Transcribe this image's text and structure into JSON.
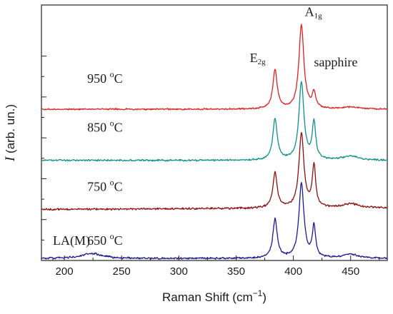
{
  "chart_data": {
    "type": "line",
    "title": "",
    "xlabel": {
      "prefix": "Raman Shift (cm",
      "sup": "−1",
      "suffix": ")"
    },
    "ylabel": {
      "symbol": "I",
      "text": " (arb. un.)"
    },
    "xlim": [
      180,
      482
    ],
    "ylim": [
      0,
      6.25
    ],
    "xticks": [
      200,
      250,
      300,
      350,
      400,
      450
    ],
    "yticks_unlabeled": [
      1,
      2,
      3,
      4,
      5
    ],
    "grid": false,
    "peaks": [
      {
        "center": 384,
        "width": 2.3
      },
      {
        "center": 407,
        "width": 2.6
      },
      {
        "center": 418,
        "width": 1.8
      },
      {
        "center": 450,
        "width": 8
      },
      {
        "center": 224,
        "width": 10
      }
    ],
    "series": [
      {
        "name": "650 °C",
        "color": "#1a1a96",
        "baseline": 0.05,
        "slope": 0.0,
        "amps": [
          0.95,
          1.82,
          0.75,
          0.1,
          0.12
        ],
        "noise": 0.028
      },
      {
        "name": "750 °C",
        "color": "#8c1010",
        "baseline": 1.25,
        "slope": 0.00012,
        "amps": [
          0.85,
          1.82,
          1.0,
          0.1,
          0.0
        ],
        "noise": 0.028
      },
      {
        "name": "850 °C",
        "color": "#10908c",
        "baseline": 2.45,
        "slope": 0.0,
        "amps": [
          1.0,
          1.9,
          0.9,
          0.1,
          0.0
        ],
        "noise": 0.025
      },
      {
        "name": "950 °C",
        "color": "#e02020",
        "baseline": 3.7,
        "slope": 0.0,
        "amps": [
          0.95,
          2.05,
          0.38,
          0.05,
          0.0
        ],
        "noise": 0.022
      }
    ],
    "labels": [
      {
        "id": "temp-950",
        "text": "950 ",
        "sup": "o",
        "tail": "C",
        "x": 220,
        "y": 4.35
      },
      {
        "id": "temp-850",
        "text": "850 ",
        "sup": "o",
        "tail": "C",
        "x": 220,
        "y": 3.15
      },
      {
        "id": "temp-750",
        "text": "750 ",
        "sup": "o",
        "tail": "C",
        "x": 220,
        "y": 1.7
      },
      {
        "id": "temp-650",
        "text": "650 ",
        "sup": "o",
        "tail": "C",
        "x": 220,
        "y": 0.38
      },
      {
        "id": "peak-e2g",
        "text": "E",
        "sub": "2g",
        "x": 362,
        "y": 4.85
      },
      {
        "id": "peak-a1g",
        "text": "A",
        "sub": "1g",
        "x": 410,
        "y": 5.98
      },
      {
        "id": "peak-sapphire",
        "text": "sapphire",
        "x": 418,
        "y": 4.75
      },
      {
        "id": "la-m",
        "text": "LA(M)",
        "x": 190,
        "y": 0.38
      }
    ]
  }
}
